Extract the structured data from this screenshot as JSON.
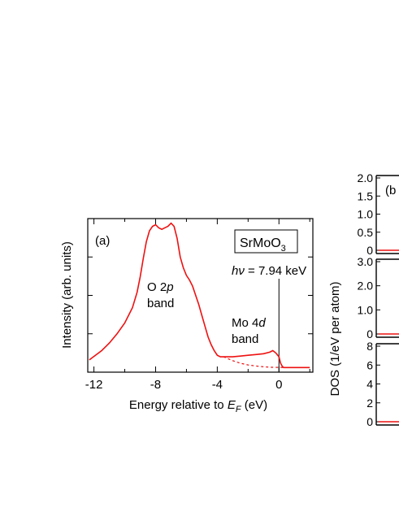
{
  "chart_data": [
    {
      "panel": "(a)",
      "type": "line",
      "title": "",
      "xlabel": "Energy relative to E_F (eV)",
      "ylabel": "Intensity (arb. units)",
      "xlim": [
        -12.4,
        2.2
      ],
      "ylim": [
        0,
        1.0
      ],
      "x_ticks": [
        -12,
        -8,
        -4,
        0
      ],
      "x_tick_labels": [
        "-12",
        "-8",
        "-4",
        "0"
      ],
      "grid": false,
      "annotations": {
        "panel_label": "(a)",
        "sample_main": "SrMoO",
        "sample_sub": "3",
        "photon_prefix": "hν",
        "photon_value": " = 7.94 keV",
        "o2p_line1": "O 2",
        "o2p_italic": "p",
        "o2p_line2": "band",
        "mo4d_line1": "Mo 4",
        "mo4d_italic": "d",
        "mo4d_line2": "band"
      },
      "xlabel_parts": {
        "pre": "Energy relative to ",
        "italic": "E",
        "sub": "F",
        "post": " (eV)"
      },
      "fermi_line_x": 0,
      "series": [
        {
          "style": "solid",
          "color": "#ee1111",
          "x": [
            -12.3,
            -11.5,
            -11,
            -10.5,
            -10,
            -9.5,
            -9.2,
            -9,
            -8.8,
            -8.6,
            -8.4,
            -8.2,
            -8.0,
            -7.8,
            -7.6,
            -7.4,
            -7.2,
            -7.0,
            -6.8,
            -6.6,
            -6.4,
            -6.2,
            -6.0,
            -5.8,
            -5.6,
            -5.4,
            -5.2,
            -5.0,
            -4.8,
            -4.6,
            -4.4,
            -4.2,
            -4.0,
            -3.8,
            -3.6,
            -3.5,
            -3.0,
            -2.5,
            -2.0,
            -1.5,
            -1.0,
            -0.6,
            -0.4,
            -0.2,
            0.0,
            0.1,
            0.2,
            0.3,
            0.5,
            1.0,
            1.5,
            2.0
          ],
          "y": [
            0.08,
            0.14,
            0.19,
            0.25,
            0.32,
            0.42,
            0.52,
            0.62,
            0.74,
            0.85,
            0.92,
            0.95,
            0.96,
            0.94,
            0.93,
            0.94,
            0.95,
            0.97,
            0.95,
            0.87,
            0.75,
            0.68,
            0.63,
            0.6,
            0.56,
            0.5,
            0.44,
            0.37,
            0.3,
            0.23,
            0.18,
            0.14,
            0.11,
            0.1,
            0.1,
            0.1,
            0.1,
            0.105,
            0.11,
            0.115,
            0.12,
            0.13,
            0.14,
            0.125,
            0.1,
            0.06,
            0.04,
            0.03,
            0.03,
            0.03,
            0.03,
            0.03
          ]
        },
        {
          "style": "dashed",
          "color": "#ee1111",
          "x": [
            -3.6,
            -3.0,
            -2.5,
            -2.0,
            -1.5,
            -1.0,
            -0.5,
            0.0,
            0.4
          ],
          "y": [
            0.1,
            0.075,
            0.058,
            0.047,
            0.04,
            0.035,
            0.032,
            0.031,
            0.03
          ]
        }
      ]
    },
    {
      "panel": "(b)",
      "type": "line",
      "title": "",
      "ylabel": "DOS (1/eV per atom)",
      "panel_label": "(b",
      "subpanels": [
        {
          "ylim": [
            0,
            2.0
          ],
          "y_ticks": [
            0,
            0.5,
            1.0,
            1.5,
            2.0
          ],
          "y_tick_labels": [
            "0",
            "0.5",
            "1.0",
            "1.5",
            "2.0"
          ]
        },
        {
          "ylim": [
            0,
            3.0
          ],
          "y_ticks": [
            0,
            1.0,
            2.0,
            3.0
          ],
          "y_tick_labels": [
            "0",
            "1.0",
            "2.0",
            "3.0"
          ]
        },
        {
          "ylim": [
            0,
            8
          ],
          "y_ticks": [
            0,
            2,
            4,
            6,
            8
          ],
          "y_tick_labels": [
            "0",
            "2",
            "4",
            "6",
            "8"
          ]
        }
      ]
    }
  ]
}
